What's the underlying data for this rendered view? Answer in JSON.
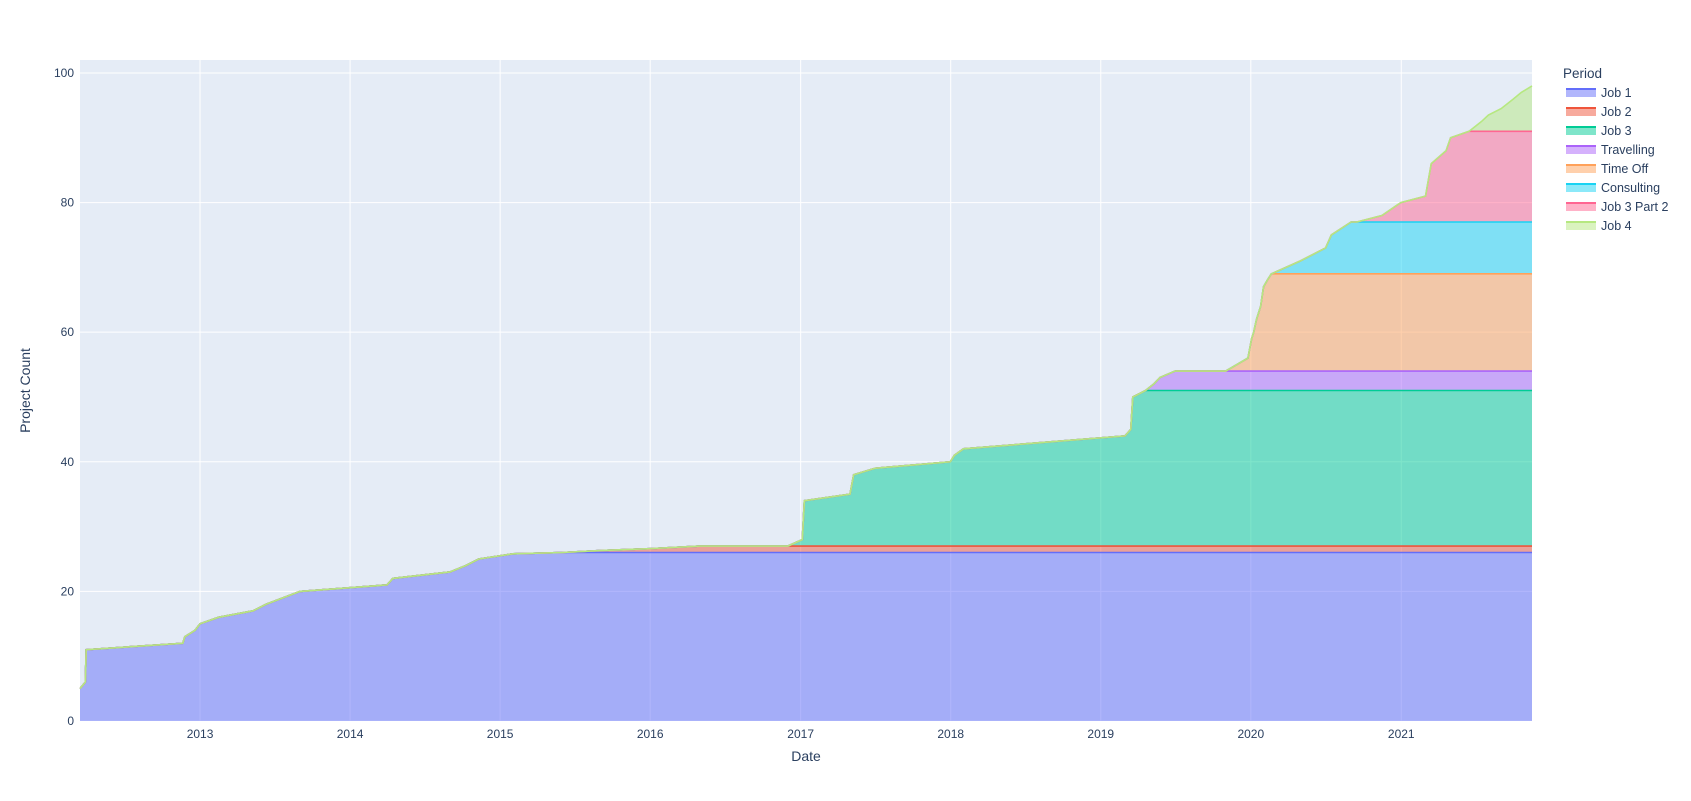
{
  "chart_data": {
    "type": "area",
    "stacked": true,
    "xlabel": "Date",
    "ylabel": "Project Count",
    "xlim": [
      "2012-03-15",
      "2021-11-15"
    ],
    "ylim": [
      0,
      102
    ],
    "x_ticks": [
      "2013",
      "2014",
      "2015",
      "2016",
      "2017",
      "2018",
      "2019",
      "2020",
      "2021"
    ],
    "y_ticks": [
      0,
      20,
      40,
      60,
      80,
      100
    ],
    "grid": true,
    "legend": {
      "title": "Period",
      "position": "right"
    },
    "colors": {
      "plot_background": "#e5ecf6",
      "grid": "#ffffff",
      "text": "#2a3f5f"
    },
    "series": [
      {
        "name": "Job 1",
        "color": "#636efa",
        "points": [
          [
            "2012-03-15",
            5
          ],
          [
            "2012-03-28",
            6
          ],
          [
            "2012-03-30",
            11
          ],
          [
            "2012-11-20",
            12
          ],
          [
            "2012-11-25",
            13
          ],
          [
            "2012-12-20",
            14
          ],
          [
            "2013-01-01",
            15
          ],
          [
            "2013-02-15",
            16
          ],
          [
            "2013-05-10",
            17
          ],
          [
            "2013-06-10",
            18
          ],
          [
            "2013-09-01",
            20
          ],
          [
            "2014-04-01",
            21
          ],
          [
            "2014-04-15",
            22
          ],
          [
            "2014-09-01",
            23
          ],
          [
            "2014-10-10",
            24
          ],
          [
            "2014-11-10",
            25
          ],
          [
            "2015-02-01",
            25.8
          ],
          [
            "2015-06-01",
            26
          ],
          [
            "2021-11-15",
            26
          ]
        ]
      },
      {
        "name": "Job 2",
        "color": "#ef553b",
        "points": [
          [
            "2012-03-15",
            0
          ],
          [
            "2015-06-01",
            0
          ],
          [
            "2015-09-01",
            0.3
          ],
          [
            "2016-01-01",
            0.6
          ],
          [
            "2016-05-01",
            1
          ],
          [
            "2021-11-15",
            1
          ]
        ]
      },
      {
        "name": "Job 3",
        "color": "#00cc96",
        "points": [
          [
            "2012-03-15",
            0
          ],
          [
            "2016-12-01",
            0
          ],
          [
            "2017-01-05",
            1
          ],
          [
            "2017-01-10",
            7
          ],
          [
            "2017-05-01",
            8
          ],
          [
            "2017-05-10",
            11
          ],
          [
            "2017-07-01",
            12
          ],
          [
            "2017-12-31",
            13
          ],
          [
            "2018-01-10",
            14
          ],
          [
            "2018-02-01",
            15
          ],
          [
            "2019-03-01",
            17
          ],
          [
            "2019-03-15",
            18
          ],
          [
            "2019-03-20",
            23
          ],
          [
            "2019-04-20",
            24
          ],
          [
            "2021-11-15",
            24
          ]
        ]
      },
      {
        "name": "Travelling",
        "color": "#ab63fa",
        "points": [
          [
            "2012-03-15",
            0
          ],
          [
            "2019-04-20",
            0
          ],
          [
            "2019-05-10",
            1
          ],
          [
            "2019-05-25",
            2
          ],
          [
            "2019-07-01",
            3
          ],
          [
            "2021-11-15",
            3
          ]
        ]
      },
      {
        "name": "Time Off",
        "color": "#ffa15a",
        "points": [
          [
            "2012-03-15",
            0
          ],
          [
            "2019-11-01",
            0
          ],
          [
            "2019-12-25",
            2
          ],
          [
            "2020-01-03",
            5
          ],
          [
            "2020-01-08",
            6
          ],
          [
            "2020-01-15",
            8
          ],
          [
            "2020-01-25",
            10
          ],
          [
            "2020-02-01",
            13
          ],
          [
            "2020-02-10",
            14
          ],
          [
            "2020-02-20",
            15
          ],
          [
            "2021-11-15",
            15
          ]
        ]
      },
      {
        "name": "Consulting",
        "color": "#19d3f3",
        "points": [
          [
            "2012-03-15",
            0
          ],
          [
            "2020-02-20",
            0
          ],
          [
            "2020-05-01",
            2
          ],
          [
            "2020-07-01",
            4
          ],
          [
            "2020-07-15",
            6
          ],
          [
            "2020-09-01",
            8
          ],
          [
            "2021-11-15",
            8
          ]
        ]
      },
      {
        "name": "Job 3 Part 2",
        "color": "#ff6692",
        "points": [
          [
            "2012-03-15",
            0
          ],
          [
            "2020-09-15",
            0
          ],
          [
            "2020-11-15",
            1
          ],
          [
            "2020-12-31",
            3
          ],
          [
            "2021-03-01",
            4
          ],
          [
            "2021-03-15",
            9
          ],
          [
            "2021-04-20",
            11
          ],
          [
            "2021-05-01",
            13
          ],
          [
            "2021-06-15",
            14
          ],
          [
            "2021-11-15",
            14
          ]
        ]
      },
      {
        "name": "Job 4",
        "color": "#b6e880",
        "points": [
          [
            "2012-03-15",
            0
          ],
          [
            "2021-06-15",
            0
          ],
          [
            "2021-07-15",
            1.5
          ],
          [
            "2021-08-01",
            2.5
          ],
          [
            "2021-09-01",
            3.5
          ],
          [
            "2021-10-01",
            5
          ],
          [
            "2021-10-20",
            6
          ],
          [
            "2021-11-15",
            7
          ]
        ]
      }
    ]
  }
}
